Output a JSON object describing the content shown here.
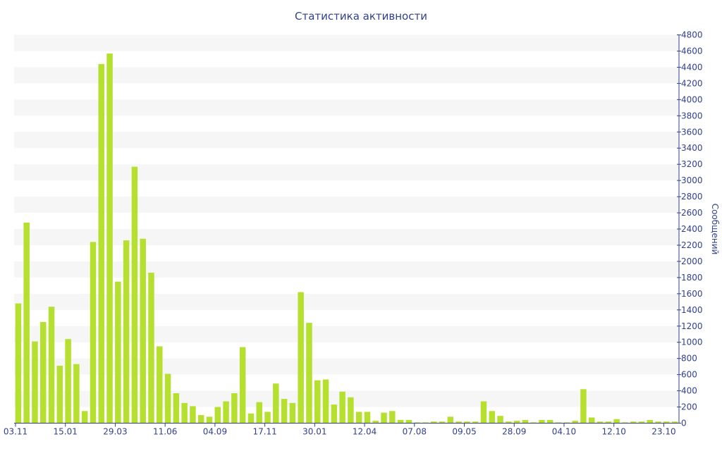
{
  "chart_data": {
    "type": "bar",
    "title": "Статистика активности",
    "ylabel": "Сообщений",
    "xlabel": "",
    "ylim": [
      0,
      4800
    ],
    "ytick_step": 200,
    "grid": "horizontal bands",
    "y_axis_side": "right",
    "bar_color": "#b5e02f",
    "band_color": "#f6f6f6",
    "text_color": "#33408c",
    "x_tick_labels": [
      {
        "index": 0,
        "label": "03.11"
      },
      {
        "index": 6,
        "label": "15.01"
      },
      {
        "index": 12,
        "label": "29.03"
      },
      {
        "index": 18,
        "label": "11.06"
      },
      {
        "index": 24,
        "label": "04.09"
      },
      {
        "index": 30,
        "label": "17.11"
      },
      {
        "index": 36,
        "label": "30.01"
      },
      {
        "index": 42,
        "label": "12.04"
      },
      {
        "index": 48,
        "label": "07.08"
      },
      {
        "index": 54,
        "label": "09.05"
      },
      {
        "index": 60,
        "label": "28.09"
      },
      {
        "index": 66,
        "label": "04.10"
      },
      {
        "index": 72,
        "label": "12.10"
      },
      {
        "index": 78,
        "label": "23.10"
      }
    ],
    "values": [
      1480,
      2480,
      1010,
      1250,
      1440,
      710,
      1040,
      730,
      150,
      2240,
      4440,
      4570,
      1750,
      2260,
      3170,
      2280,
      1860,
      950,
      610,
      370,
      250,
      210,
      100,
      80,
      200,
      270,
      370,
      940,
      120,
      260,
      140,
      490,
      300,
      250,
      1620,
      1240,
      530,
      540,
      230,
      390,
      320,
      140,
      140,
      30,
      130,
      150,
      40,
      40,
      10,
      10,
      20,
      20,
      80,
      20,
      20,
      20,
      270,
      150,
      90,
      20,
      30,
      40,
      10,
      40,
      40,
      10,
      10,
      30,
      420,
      70,
      20,
      20,
      50,
      10,
      20,
      20,
      40,
      20,
      20,
      20
    ]
  }
}
